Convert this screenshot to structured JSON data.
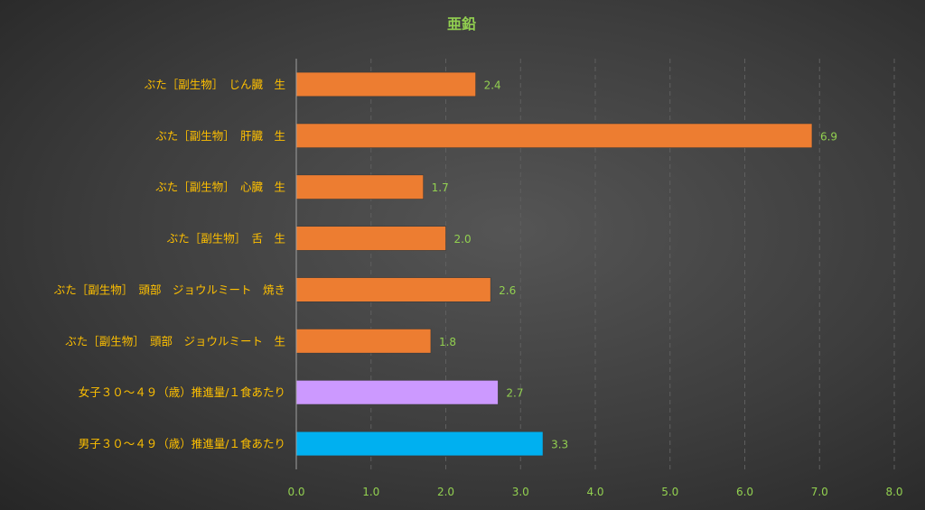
{
  "chart_data": {
    "type": "bar",
    "orientation": "horizontal",
    "title": "亜鉛",
    "xlabel": "",
    "ylabel": "",
    "xlim": [
      0,
      8
    ],
    "ticks": [
      "0.0",
      "1.0",
      "2.0",
      "3.0",
      "4.0",
      "5.0",
      "6.0",
      "7.0",
      "8.0"
    ],
    "grid": true,
    "legend": "none",
    "categories": [
      "ぶた［副生物］　じん臓　生",
      "ぶた［副生物］　肝臓　生",
      "ぶた［副生物］　心臓　生",
      "ぶた［副生物］　舌　生",
      "ぶた［副生物］　頭部　ジョウルミート　焼き",
      "ぶた［副生物］　頭部　ジョウルミート　生",
      "女子３０～４９（歳）推進量/１食あたり",
      "男子３０～４９（歳）推進量/１食あたり"
    ],
    "values": [
      2.4,
      6.9,
      1.7,
      2.0,
      2.6,
      1.8,
      2.7,
      3.3
    ],
    "value_labels": [
      "2.4",
      "6.9",
      "1.7",
      "2.0",
      "2.6",
      "1.8",
      "2.7",
      "3.3"
    ],
    "bar_colors": [
      "#ed7d31",
      "#ed7d31",
      "#ed7d31",
      "#ed7d31",
      "#ed7d31",
      "#ed7d31",
      "#cc99ff",
      "#00b0f0"
    ]
  }
}
